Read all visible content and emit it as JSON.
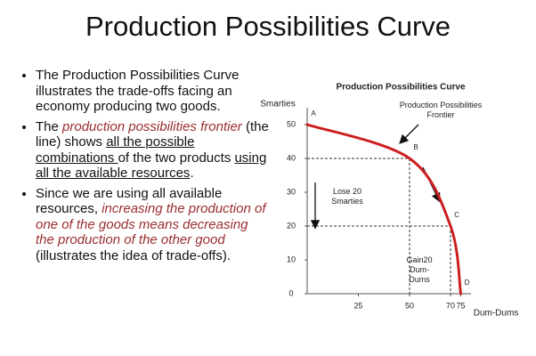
{
  "title": "Production Possibilities Curve",
  "bullets": [
    [
      "The Production Possibilities Curve illustrates the trade-offs facing an economy producing two goods."
    ],
    [
      "The ",
      "production possibilities frontier",
      " (the line) shows ",
      "all the possible combinations ",
      "of the two products ",
      "using all the available resources",
      "."
    ],
    [
      "Since we are using all available resources, ",
      "increasing the production of one of the goods means decreasing the production of the other good",
      " (illustrates the idea of trade-offs)."
    ]
  ],
  "chart_data": {
    "type": "line",
    "title": "Production Possibilities Curve",
    "x_label": "Dum-Dums",
    "y_label": "Smarties",
    "x": [
      0,
      50,
      70,
      75
    ],
    "values": [
      50,
      40,
      20,
      0
    ],
    "point_labels": [
      "A",
      "B",
      "C",
      "D"
    ],
    "color": "#cc1f1f",
    "xlim": [
      0,
      80
    ],
    "ylim": [
      0,
      55
    ],
    "xticks": [
      25,
      50,
      70,
      75
    ],
    "yticks": [
      0,
      10,
      20,
      30,
      40,
      50
    ],
    "annotations": [
      "Production Possibilities Frontier",
      "Lose 20 Smarties",
      "Gain20 Dum-Dums"
    ]
  }
}
